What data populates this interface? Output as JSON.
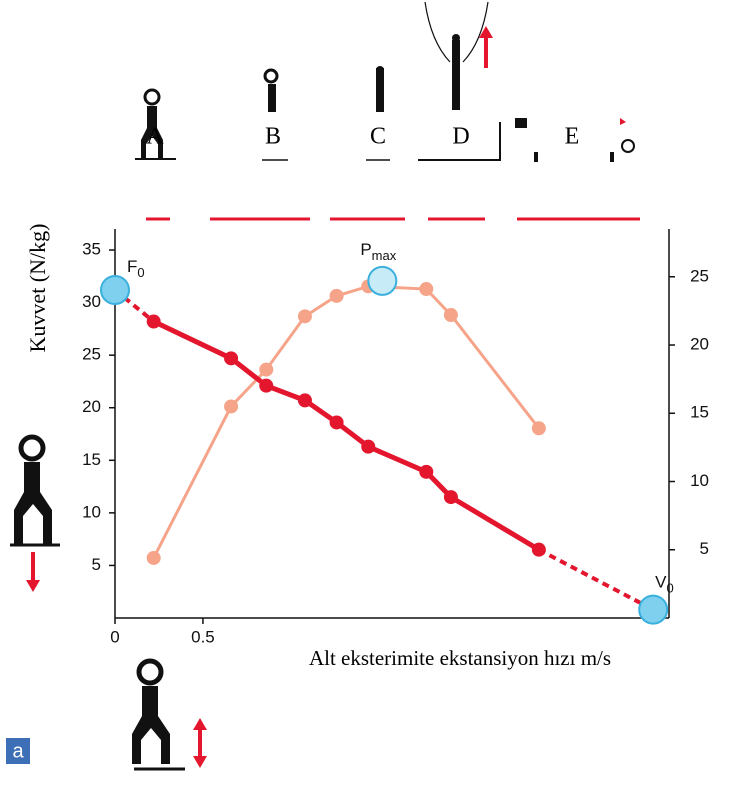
{
  "chart_data": {
    "type": "line",
    "y_label": "Kuvvet (N/kg)",
    "x_label": "Alt eksterimite ekstansiyon hızı m/s",
    "x": [
      0.22,
      0.66,
      0.86,
      1.08,
      1.26,
      1.44,
      1.77,
      1.91,
      2.41
    ],
    "series": [
      {
        "color": "#e3162e",
        "values": [
          28.2,
          24.7,
          22.1,
          20.7,
          18.6,
          16.3,
          13.9,
          11.5,
          6.5
        ]
      },
      {
        "color": "#f6a489",
        "axis": "y2",
        "values": [
          4.4,
          15.5,
          18.2,
          22.1,
          23.6,
          24.3,
          24.1,
          22.2,
          13.9
        ]
      }
    ],
    "xlim": [
      0,
      3.15
    ],
    "xticks": [
      0,
      0.5
    ],
    "ylim": [
      0,
      37
    ],
    "yticks": [
      5,
      10,
      15,
      20,
      25,
      30,
      35
    ],
    "y2lim": [
      0,
      28.5
    ],
    "y2ticks": [
      5,
      10,
      15,
      20,
      25
    ],
    "annotations": [
      {
        "label": "F",
        "sub": "0",
        "x": 0,
        "y": 31.2
      },
      {
        "label": "P",
        "sub": "max",
        "x": 1.52,
        "y": 24.7,
        "axis": "y2"
      },
      {
        "label": "V",
        "sub": "0",
        "x": 3.06,
        "y": 0.8
      }
    ],
    "phases": [
      "A",
      "B",
      "C",
      "D",
      "E"
    ],
    "panel_label": "a"
  }
}
